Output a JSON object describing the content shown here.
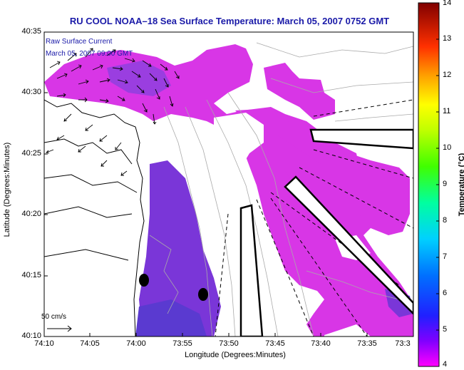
{
  "title": "RU COOL  NOAA–18  Sea Surface Temperature:  March 05, 2007 0752 GMT",
  "axes": {
    "xlabel": "Longitude (Degrees:Minutes)",
    "ylabel": "Latitude (Degrees:Minutes)",
    "xticks": [
      "74:10",
      "74:05",
      "74:00",
      "73:55",
      "73:50",
      "73:45",
      "73:40",
      "73:35",
      "73:3"
    ],
    "yticks": [
      "40:35",
      "40:30",
      "40:25",
      "40:20",
      "40:15",
      "40:10"
    ]
  },
  "legend": {
    "line1": "Raw Surface Current",
    "line2": "March 05, 2007 09:00 GMT"
  },
  "scale": {
    "label": "50 cm/s"
  },
  "colorbar": {
    "label": "Temperature (°C)",
    "ticks": [
      "14",
      "13",
      "12",
      "11",
      "10",
      "9",
      "8",
      "7",
      "6",
      "5",
      "4"
    ],
    "min": 4,
    "max": 14
  },
  "colors": {
    "sst_main": "#d836e6",
    "sst_deep": "#7a36d8",
    "title": "#1a1aa8"
  }
}
